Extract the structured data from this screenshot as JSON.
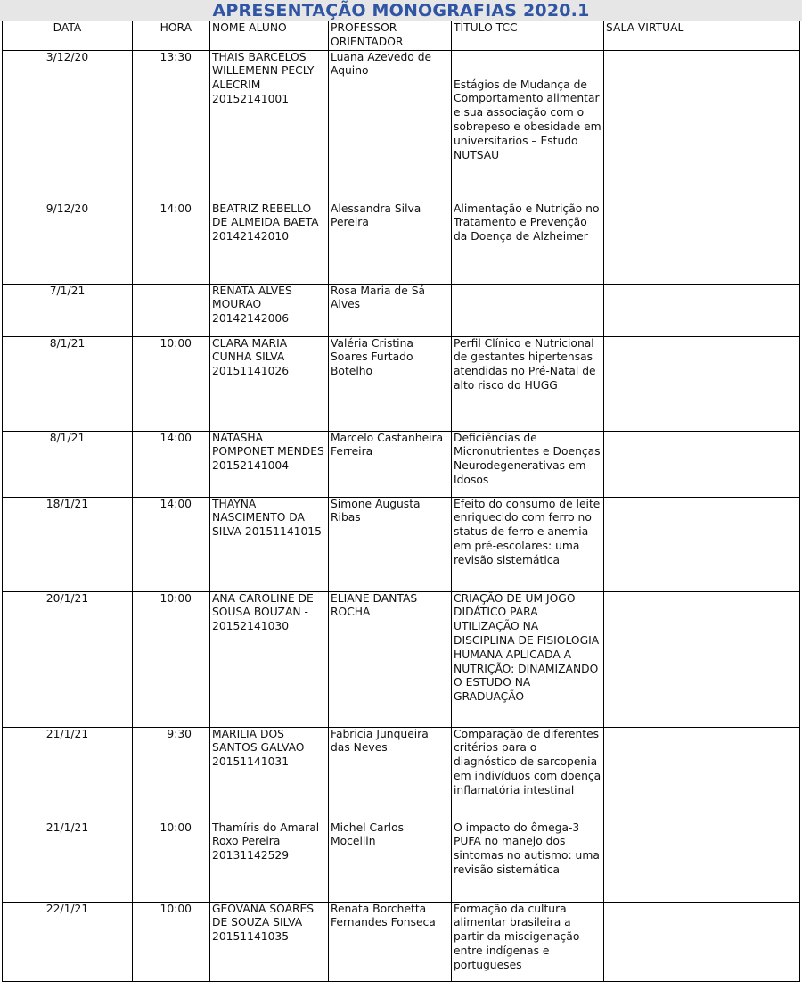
{
  "title": "APRESENTAÇÃO MONOGRAFIAS 2020.1",
  "columns": [
    "DATA",
    "HORA",
    "NOME ALUNO",
    "PROFESSOR ORIENTADOR",
    "TÍTULO TCC",
    "SALA VIRTUAL"
  ],
  "rows": [
    {
      "data": "3/12/20",
      "hora": "13:30",
      "aluno": "THAIS BARCELOS WILLEMENN PECLY ALECRIM 20152141001",
      "orientador": "Luana Azevedo de Aquino",
      "titulo": "Estágios de Mudança de Comportamento alimentar e sua associação com o sobrepeso e obesidade em universitarios – Estudo NUTSAU",
      "sala": ""
    },
    {
      "data": "9/12/20",
      "hora": "14:00",
      "aluno": "BEATRIZ REBELLO DE ALMEIDA BAETA 20142142010",
      "orientador": "Alessandra Silva Pereira",
      "titulo": "Alimentação e Nutrição no Tratamento e Prevenção da Doença de Alzheimer",
      "sala": ""
    },
    {
      "data": "7/1/21",
      "hora": "",
      "aluno": "RENATA ALVES MOURAO 20142142006",
      "orientador": "Rosa Maria de Sá Alves",
      "titulo": "",
      "sala": ""
    },
    {
      "data": "8/1/21",
      "hora": "10:00",
      "aluno": "CLARA MARIA CUNHA SILVA 20151141026",
      "orientador": "Valéria Cristina Soares Furtado Botelho",
      "titulo": "Perfil Clínico e Nutricional de gestantes hipertensas atendidas no Pré-Natal de alto risco do HUGG",
      "sala": ""
    },
    {
      "data": "8/1/21",
      "hora": "14:00",
      "aluno": "NATASHA POMPONET MENDES 20152141004",
      "orientador": "Marcelo Castanheira Ferreira",
      "titulo": "Deficiências de Micronutrientes e Doenças Neurodegenerativas em Idosos",
      "sala": ""
    },
    {
      "data": "18/1/21",
      "hora": "14:00",
      "aluno": "THAYNA NASCIMENTO DA SILVA 20151141015",
      "orientador": "Simone Augusta Ribas",
      "titulo": "Efeito do consumo de leite enriquecido com ferro no status de ferro e anemia em pré-escolares: uma revisão sistemática",
      "sala": ""
    },
    {
      "data": "20/1/21",
      "hora": "10:00",
      "aluno": "ANA CAROLINE DE SOUSA BOUZAN - 20152141030",
      "orientador": "ELIANE DANTAS ROCHA",
      "titulo": "CRIAÇÃO DE UM JOGO DIDÁTICO PARA UTILIZAÇÃO NA DISCIPLINA DE FISIOLOGIA HUMANA APLICADA A NUTRIÇÃO: DINAMIZANDO O ESTUDO NA GRADUAÇÃO",
      "sala": ""
    },
    {
      "data": "21/1/21",
      "hora": "9:30",
      "aluno": "MARILIA DOS SANTOS GALVAO 20151141031",
      "orientador": "Fabricia Junqueira das Neves",
      "titulo": "Comparação de diferentes critérios para o diagnóstico de sarcopenia em indivíduos com doença inflamatória intestinal",
      "sala": ""
    },
    {
      "data": "21/1/21",
      "hora": "10:00",
      "aluno": "Thamíris do Amaral Roxo Pereira 20131142529",
      "orientador": "Michel Carlos Mocellin",
      "titulo": "O impacto do ômega-3 PUFA no manejo dos sintomas no autismo: uma revisão sistemática",
      "sala": ""
    },
    {
      "data": "22/1/21",
      "hora": "10:00",
      "aluno": "GEOVANA SOARES DE SOUZA SILVA 20151141035",
      "orientador": "Renata Borchetta Fernandes Fonseca",
      "titulo": "Formação da cultura alimentar brasileira a partir da miscigenação entre indígenas e portugueses",
      "sala": ""
    }
  ]
}
